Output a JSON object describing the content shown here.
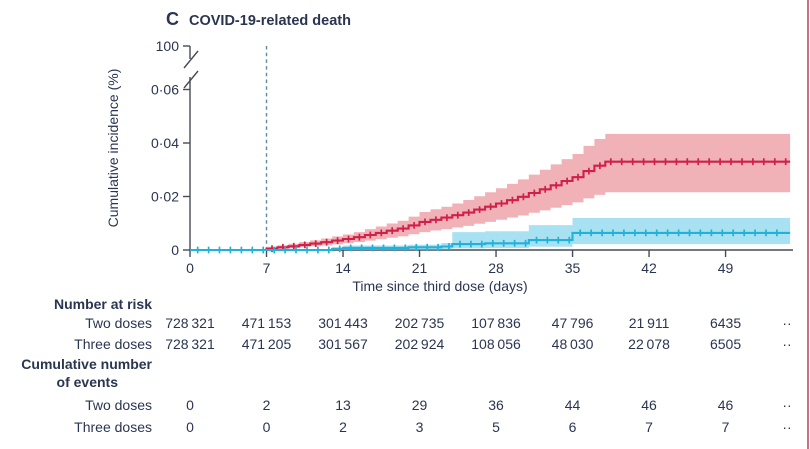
{
  "figure": {
    "panel_letter": "C",
    "title": "COVID-19-related death",
    "border_color": "#cd6f7d",
    "text_color": "#2a3550",
    "axis_color": "#474c55"
  },
  "chart_data": {
    "type": "line",
    "subtype": "step-cumulative-incidence-with-ci-bands",
    "title": "COVID-19-related death",
    "xlabel": "Time since third dose (days)",
    "ylabel": "Cumulative incidence (%)",
    "x_ticks": [
      0,
      7,
      14,
      21,
      28,
      35,
      42,
      49
    ],
    "x_max": 54.9,
    "y_tick_values": [
      0,
      0.02,
      0.04,
      0.06
    ],
    "y_tick_labels": [
      "0",
      "0·02",
      "0·04",
      "0·06"
    ],
    "y_axis_break_label": "100",
    "reference_line_x": 7,
    "reference_line_color": "#5e8ba3",
    "censor_interval": 1,
    "series": [
      {
        "name": "Two doses",
        "color": "#d0204a",
        "band_color": "#f0b2b7",
        "censor_start": 7.5,
        "x": [
          0,
          7,
          8,
          9,
          10,
          11,
          12,
          13,
          14,
          15,
          16,
          17,
          18,
          19,
          20,
          21,
          22,
          23,
          24,
          25,
          26,
          27,
          28,
          29,
          30,
          31,
          32,
          33,
          34,
          35,
          36,
          37,
          38,
          54.9
        ],
        "y": [
          0,
          0.0005,
          0.001,
          0.0014,
          0.0019,
          0.0024,
          0.0029,
          0.0035,
          0.0041,
          0.0048,
          0.0056,
          0.0064,
          0.0072,
          0.008,
          0.0092,
          0.0105,
          0.0113,
          0.0121,
          0.013,
          0.014,
          0.0151,
          0.0162,
          0.0174,
          0.0186,
          0.0199,
          0.0213,
          0.0227,
          0.0242,
          0.0258,
          0.0272,
          0.0295,
          0.0315,
          0.033,
          0.033
        ],
        "ci_upper": [
          0,
          0.0012,
          0.0018,
          0.0023,
          0.003,
          0.0036,
          0.0043,
          0.0051,
          0.0058,
          0.0067,
          0.0078,
          0.0088,
          0.0099,
          0.0109,
          0.0125,
          0.0142,
          0.0152,
          0.0162,
          0.0174,
          0.0187,
          0.0201,
          0.0216,
          0.0231,
          0.0247,
          0.0264,
          0.0282,
          0.03,
          0.032,
          0.034,
          0.0359,
          0.0389,
          0.0415,
          0.0434,
          0.0434
        ],
        "ci_lower": [
          0,
          0.0001,
          0.0005,
          0.0007,
          0.0011,
          0.0014,
          0.0017,
          0.0021,
          0.0025,
          0.003,
          0.0035,
          0.004,
          0.0046,
          0.0051,
          0.0059,
          0.0067,
          0.0073,
          0.0078,
          0.0084,
          0.009,
          0.0098,
          0.0105,
          0.0113,
          0.0121,
          0.0129,
          0.0139,
          0.0148,
          0.0158,
          0.0168,
          0.0178,
          0.0193,
          0.0206,
          0.0216,
          0.0216
        ]
      },
      {
        "name": "Three doses",
        "color": "#22b1d8",
        "band_color": "#a8e2f2",
        "censor_start": 0.7,
        "x": [
          0,
          13,
          14,
          20,
          23,
          24,
          27,
          31,
          35,
          54.9
        ],
        "y": [
          0,
          0.0004,
          0.0008,
          0.001,
          0.0013,
          0.0022,
          0.0025,
          0.0037,
          0.0064,
          0.0064
        ],
        "ci_upper": [
          0,
          0.0011,
          0.0017,
          0.002,
          0.0026,
          0.0067,
          0.007,
          0.0093,
          0.012,
          0.012
        ],
        "ci_lower": [
          0,
          0.0001,
          0.0002,
          0.0002,
          0.0003,
          0.0006,
          0.0007,
          0.0012,
          0.0022,
          0.0022
        ]
      }
    ]
  },
  "risk_table": {
    "header": "Number at risk",
    "rows": [
      {
        "label": "Two doses",
        "values": [
          "728 321",
          "471 153",
          "301 443",
          "202 735",
          "107 836",
          "47 796",
          "21 911",
          "6435",
          "··"
        ]
      },
      {
        "label": "Three doses",
        "values": [
          "728 321",
          "471 205",
          "301 567",
          "202 924",
          "108 056",
          "48 030",
          "22 078",
          "6505",
          "··"
        ]
      }
    ],
    "events_header_line1": "Cumulative number",
    "events_header_line2": "of events",
    "events_rows": [
      {
        "label": "Two doses",
        "values": [
          "0",
          "2",
          "13",
          "29",
          "36",
          "44",
          "46",
          "46",
          "··"
        ]
      },
      {
        "label": "Three doses",
        "values": [
          "0",
          "0",
          "2",
          "3",
          "5",
          "6",
          "7",
          "7",
          "··"
        ]
      }
    ]
  }
}
